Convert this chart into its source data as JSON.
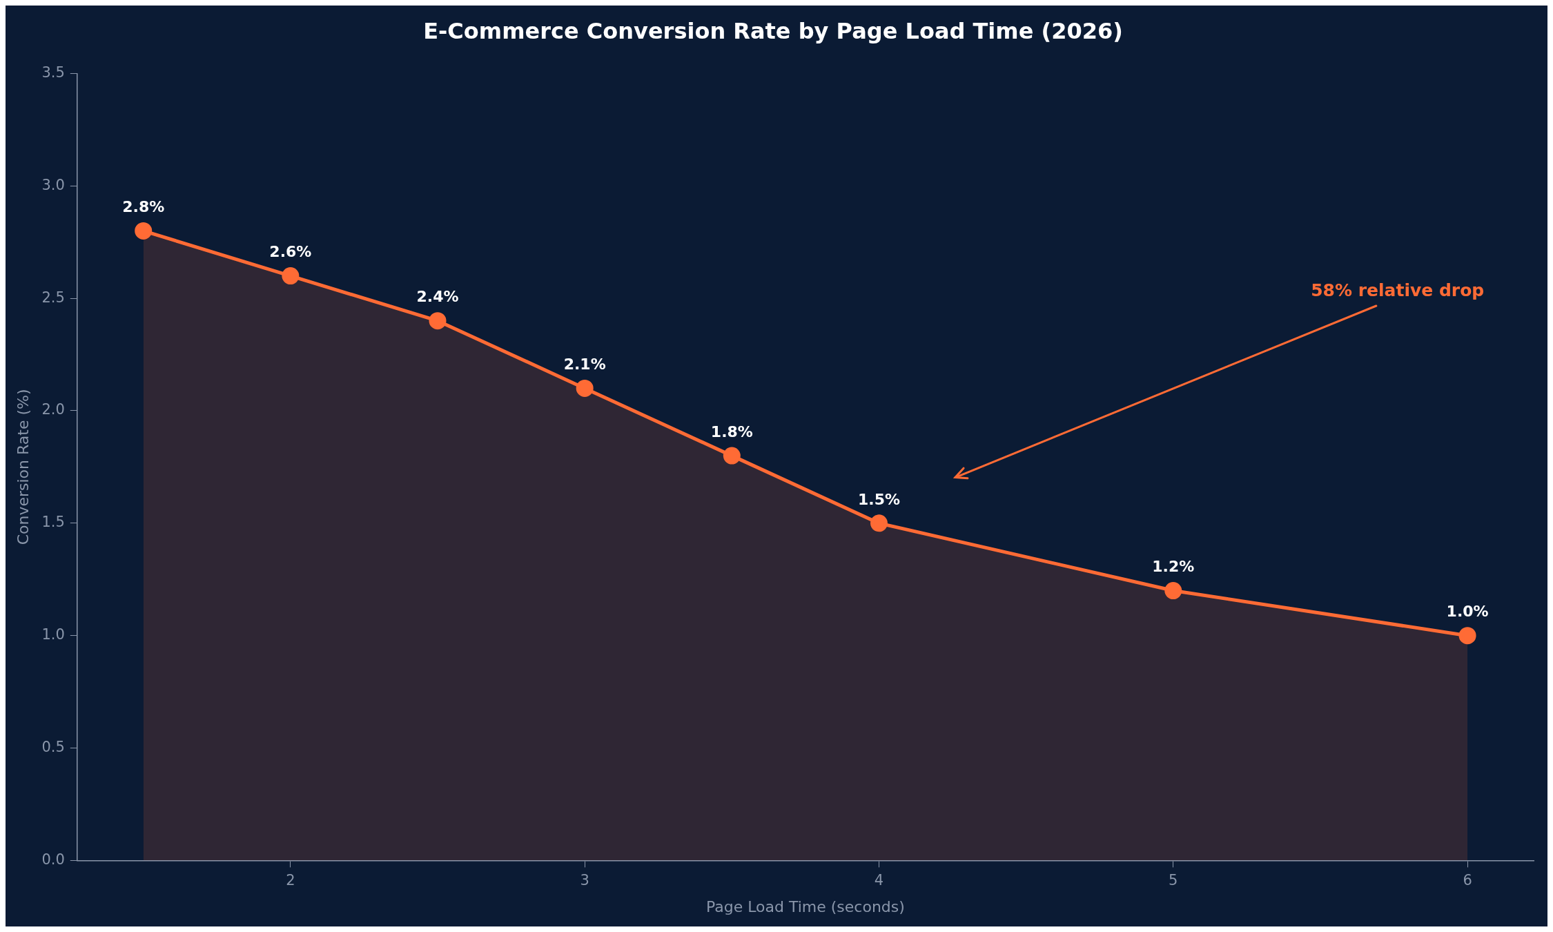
{
  "chart_data": {
    "type": "area",
    "title": "E-Commerce Conversion Rate by Page Load Time (2026)",
    "xlabel": "Page Load Time (seconds)",
    "ylabel": "Conversion Rate (%)",
    "x": [
      1.5,
      2,
      2.5,
      3,
      3.5,
      4,
      5,
      6
    ],
    "series": [
      {
        "color": "#ff6b35",
        "values": [
          2.8,
          2.6,
          2.4,
          2.1,
          1.8,
          1.5,
          1.2,
          1.0
        ],
        "value_labels": [
          "2.8%",
          "2.6%",
          "2.4%",
          "2.1%",
          "1.8%",
          "1.5%",
          "1.2%",
          "1.0%"
        ]
      }
    ],
    "xlim": [
      1.275,
      6.225
    ],
    "xticks": [
      2,
      3,
      4,
      5,
      6
    ],
    "ylim": [
      0,
      3.5
    ],
    "yticks": [
      {
        "value": 0,
        "label": "0.0"
      },
      0.5,
      {
        "value": 1,
        "label": "1.0"
      },
      1.5,
      {
        "value": 2,
        "label": "2.0"
      },
      2.5,
      {
        "value": 3,
        "label": "3.0"
      },
      3.5
    ],
    "annotations": [
      "58% relative drop"
    ],
    "grid": false,
    "legend": false,
    "marker": "circle",
    "line_style": "solid"
  }
}
